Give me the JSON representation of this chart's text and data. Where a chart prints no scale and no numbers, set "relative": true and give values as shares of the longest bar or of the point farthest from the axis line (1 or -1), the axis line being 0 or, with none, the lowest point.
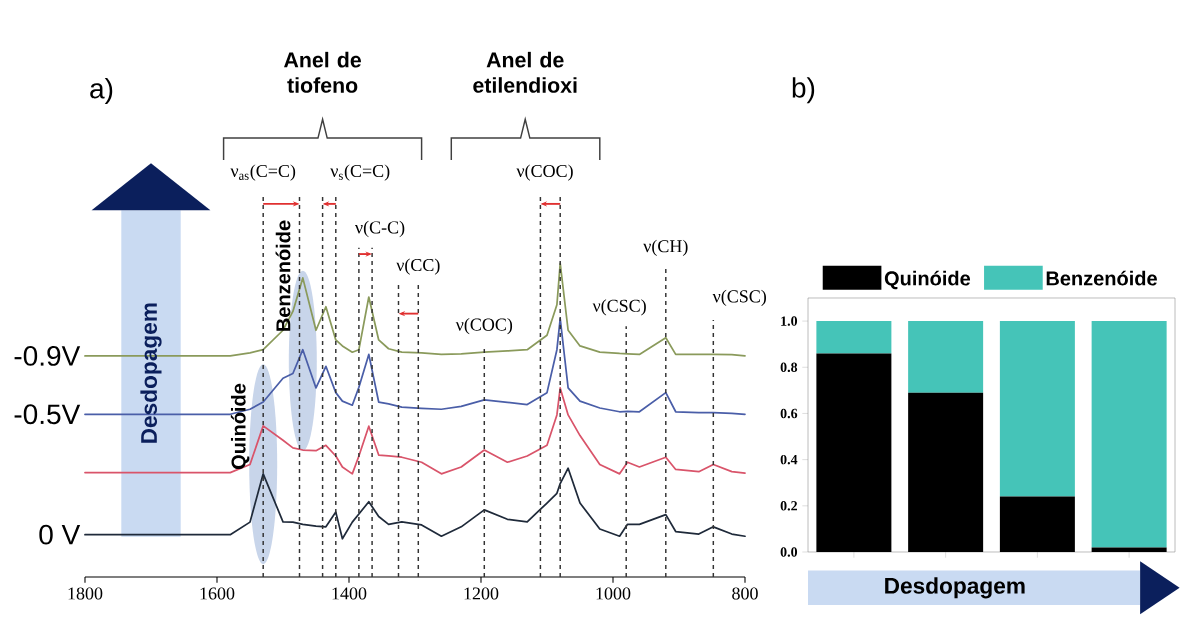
{
  "chart_data": [
    {
      "type": "line",
      "relative": true,
      "legend": false,
      "xlim": [
        1800,
        800
      ],
      "xticks": [
        1800,
        1600,
        1400,
        1200,
        1000,
        800
      ],
      "x": [
        1800,
        1580,
        1550,
        1530,
        1500,
        1485,
        1470,
        1450,
        1435,
        1420,
        1410,
        1395,
        1385,
        1370,
        1355,
        1340,
        1320,
        1290,
        1260,
        1230,
        1195,
        1160,
        1130,
        1100,
        1085,
        1080,
        1068,
        1050,
        1020,
        990,
        978,
        960,
        920,
        905,
        870,
        848,
        820,
        800
      ],
      "series": [
        {
          "name": "-0.9V",
          "color": "#8a9a5b",
          "values": [
            0.705,
            0.705,
            0.715,
            0.725,
            0.787,
            0.847,
            0.954,
            0.787,
            0.862,
            0.756,
            0.737,
            0.717,
            0.725,
            0.893,
            0.756,
            0.728,
            0.717,
            0.715,
            0.71,
            0.712,
            0.717,
            0.721,
            0.725,
            0.771,
            0.868,
            1.0,
            0.787,
            0.737,
            0.717,
            0.713,
            0.712,
            0.71,
            0.763,
            0.71,
            0.71,
            0.71,
            0.709,
            0.705
          ]
        },
        {
          "name": "-0.5V",
          "color": "#4a5ea8",
          "values": [
            0.519,
            0.519,
            0.535,
            0.558,
            0.634,
            0.649,
            0.725,
            0.603,
            0.672,
            0.588,
            0.561,
            0.548,
            0.605,
            0.71,
            0.558,
            0.552,
            0.542,
            0.538,
            0.535,
            0.544,
            0.565,
            0.557,
            0.55,
            0.588,
            0.725,
            0.824,
            0.603,
            0.561,
            0.539,
            0.527,
            0.528,
            0.527,
            0.588,
            0.527,
            0.524,
            0.524,
            0.522,
            0.519
          ]
        },
        {
          "color": "#d9546a",
          "values": [
            0.333,
            0.333,
            0.359,
            0.482,
            0.436,
            0.412,
            0.405,
            0.403,
            0.42,
            0.386,
            0.351,
            0.329,
            0.386,
            0.481,
            0.389,
            0.386,
            0.382,
            0.366,
            0.329,
            0.351,
            0.405,
            0.366,
            0.386,
            0.42,
            0.517,
            0.603,
            0.517,
            0.451,
            0.359,
            0.329,
            0.366,
            0.351,
            0.382,
            0.343,
            0.336,
            0.359,
            0.336,
            0.331
          ]
        },
        {
          "name": "0 V",
          "color": "#1f2a3a",
          "values": [
            0.135,
            0.135,
            0.175,
            0.329,
            0.176,
            0.175,
            0.168,
            0.162,
            0.16,
            0.207,
            0.122,
            0.175,
            0.201,
            0.24,
            0.193,
            0.168,
            0.176,
            0.166,
            0.13,
            0.16,
            0.214,
            0.184,
            0.176,
            0.236,
            0.267,
            0.298,
            0.347,
            0.236,
            0.153,
            0.13,
            0.168,
            0.168,
            0.199,
            0.145,
            0.137,
            0.16,
            0.137,
            0.13
          ]
        }
      ],
      "ref_lines": [
        {
          "axis": "x",
          "value": 1530,
          "label": "ν$_{as}$(C=C)",
          "line_style": "dashed",
          "color": "#333333"
        },
        {
          "axis": "x",
          "value": 1475,
          "line_style": "dashed",
          "color": "#333333"
        },
        {
          "axis": "x",
          "value": 1440,
          "label": "ν$_{s}$(C=C)",
          "line_style": "dashed",
          "color": "#333333"
        },
        {
          "axis": "x",
          "value": 1420,
          "line_style": "dashed",
          "color": "#333333"
        },
        {
          "axis": "x",
          "value": 1385,
          "label": "ν(C-C)",
          "line_style": "dashed",
          "color": "#333333"
        },
        {
          "axis": "x",
          "value": 1365,
          "line_style": "dashed",
          "color": "#333333"
        },
        {
          "axis": "x",
          "value": 1325,
          "label": "ν(CC)",
          "line_style": "dashed",
          "color": "#333333"
        },
        {
          "axis": "x",
          "value": 1295,
          "line_style": "dashed",
          "color": "#333333"
        },
        {
          "axis": "x",
          "value": 1195,
          "label": "ν(COC)",
          "line_style": "dashed",
          "color": "#333333"
        },
        {
          "axis": "x",
          "value": 1110,
          "label": "ν(COC)",
          "line_style": "dashed",
          "color": "#333333"
        },
        {
          "axis": "x",
          "value": 1080,
          "line_style": "dashed",
          "color": "#333333"
        },
        {
          "axis": "x",
          "value": 980,
          "label": "ν(CSC)",
          "line_style": "dashed",
          "color": "#333333"
        },
        {
          "axis": "x",
          "value": 920,
          "label": "ν(CH)",
          "line_style": "dashed",
          "color": "#333333"
        },
        {
          "axis": "x",
          "value": 848,
          "label": "ν(CSC)",
          "line_style": "dashed",
          "color": "#333333"
        }
      ],
      "annotations": [
        "a)",
        "Anel de tiofeno",
        "Anel de etilendioxi",
        "Quinóide",
        "Benzenóide",
        "Desdopagem"
      ]
    },
    {
      "type": "bar",
      "stacked": true,
      "legend": "top",
      "tick_labels": "y",
      "categories": [
        null,
        null,
        null,
        null
      ],
      "ylim": [
        0,
        1.1
      ],
      "yticks": [
        {
          "value": 0,
          "label": "0.0"
        },
        {
          "value": 0.2,
          "label": "0.2"
        },
        {
          "value": 0.4,
          "label": "0.4"
        },
        {
          "value": 0.6,
          "label": "0.6"
        },
        {
          "value": 0.8,
          "label": "0.8"
        },
        {
          "value": 1,
          "label": "1.0"
        }
      ],
      "series": [
        {
          "name": "Quinóide",
          "color": "#000000",
          "values": [
            0.86,
            0.69,
            0.24,
            0.02
          ]
        },
        {
          "name": "Benzenóide",
          "color": "#45c4b8",
          "values": [
            0.14,
            0.31,
            0.76,
            0.98
          ]
        }
      ],
      "annotations": [
        "b)",
        "Desdopagem"
      ]
    }
  ]
}
